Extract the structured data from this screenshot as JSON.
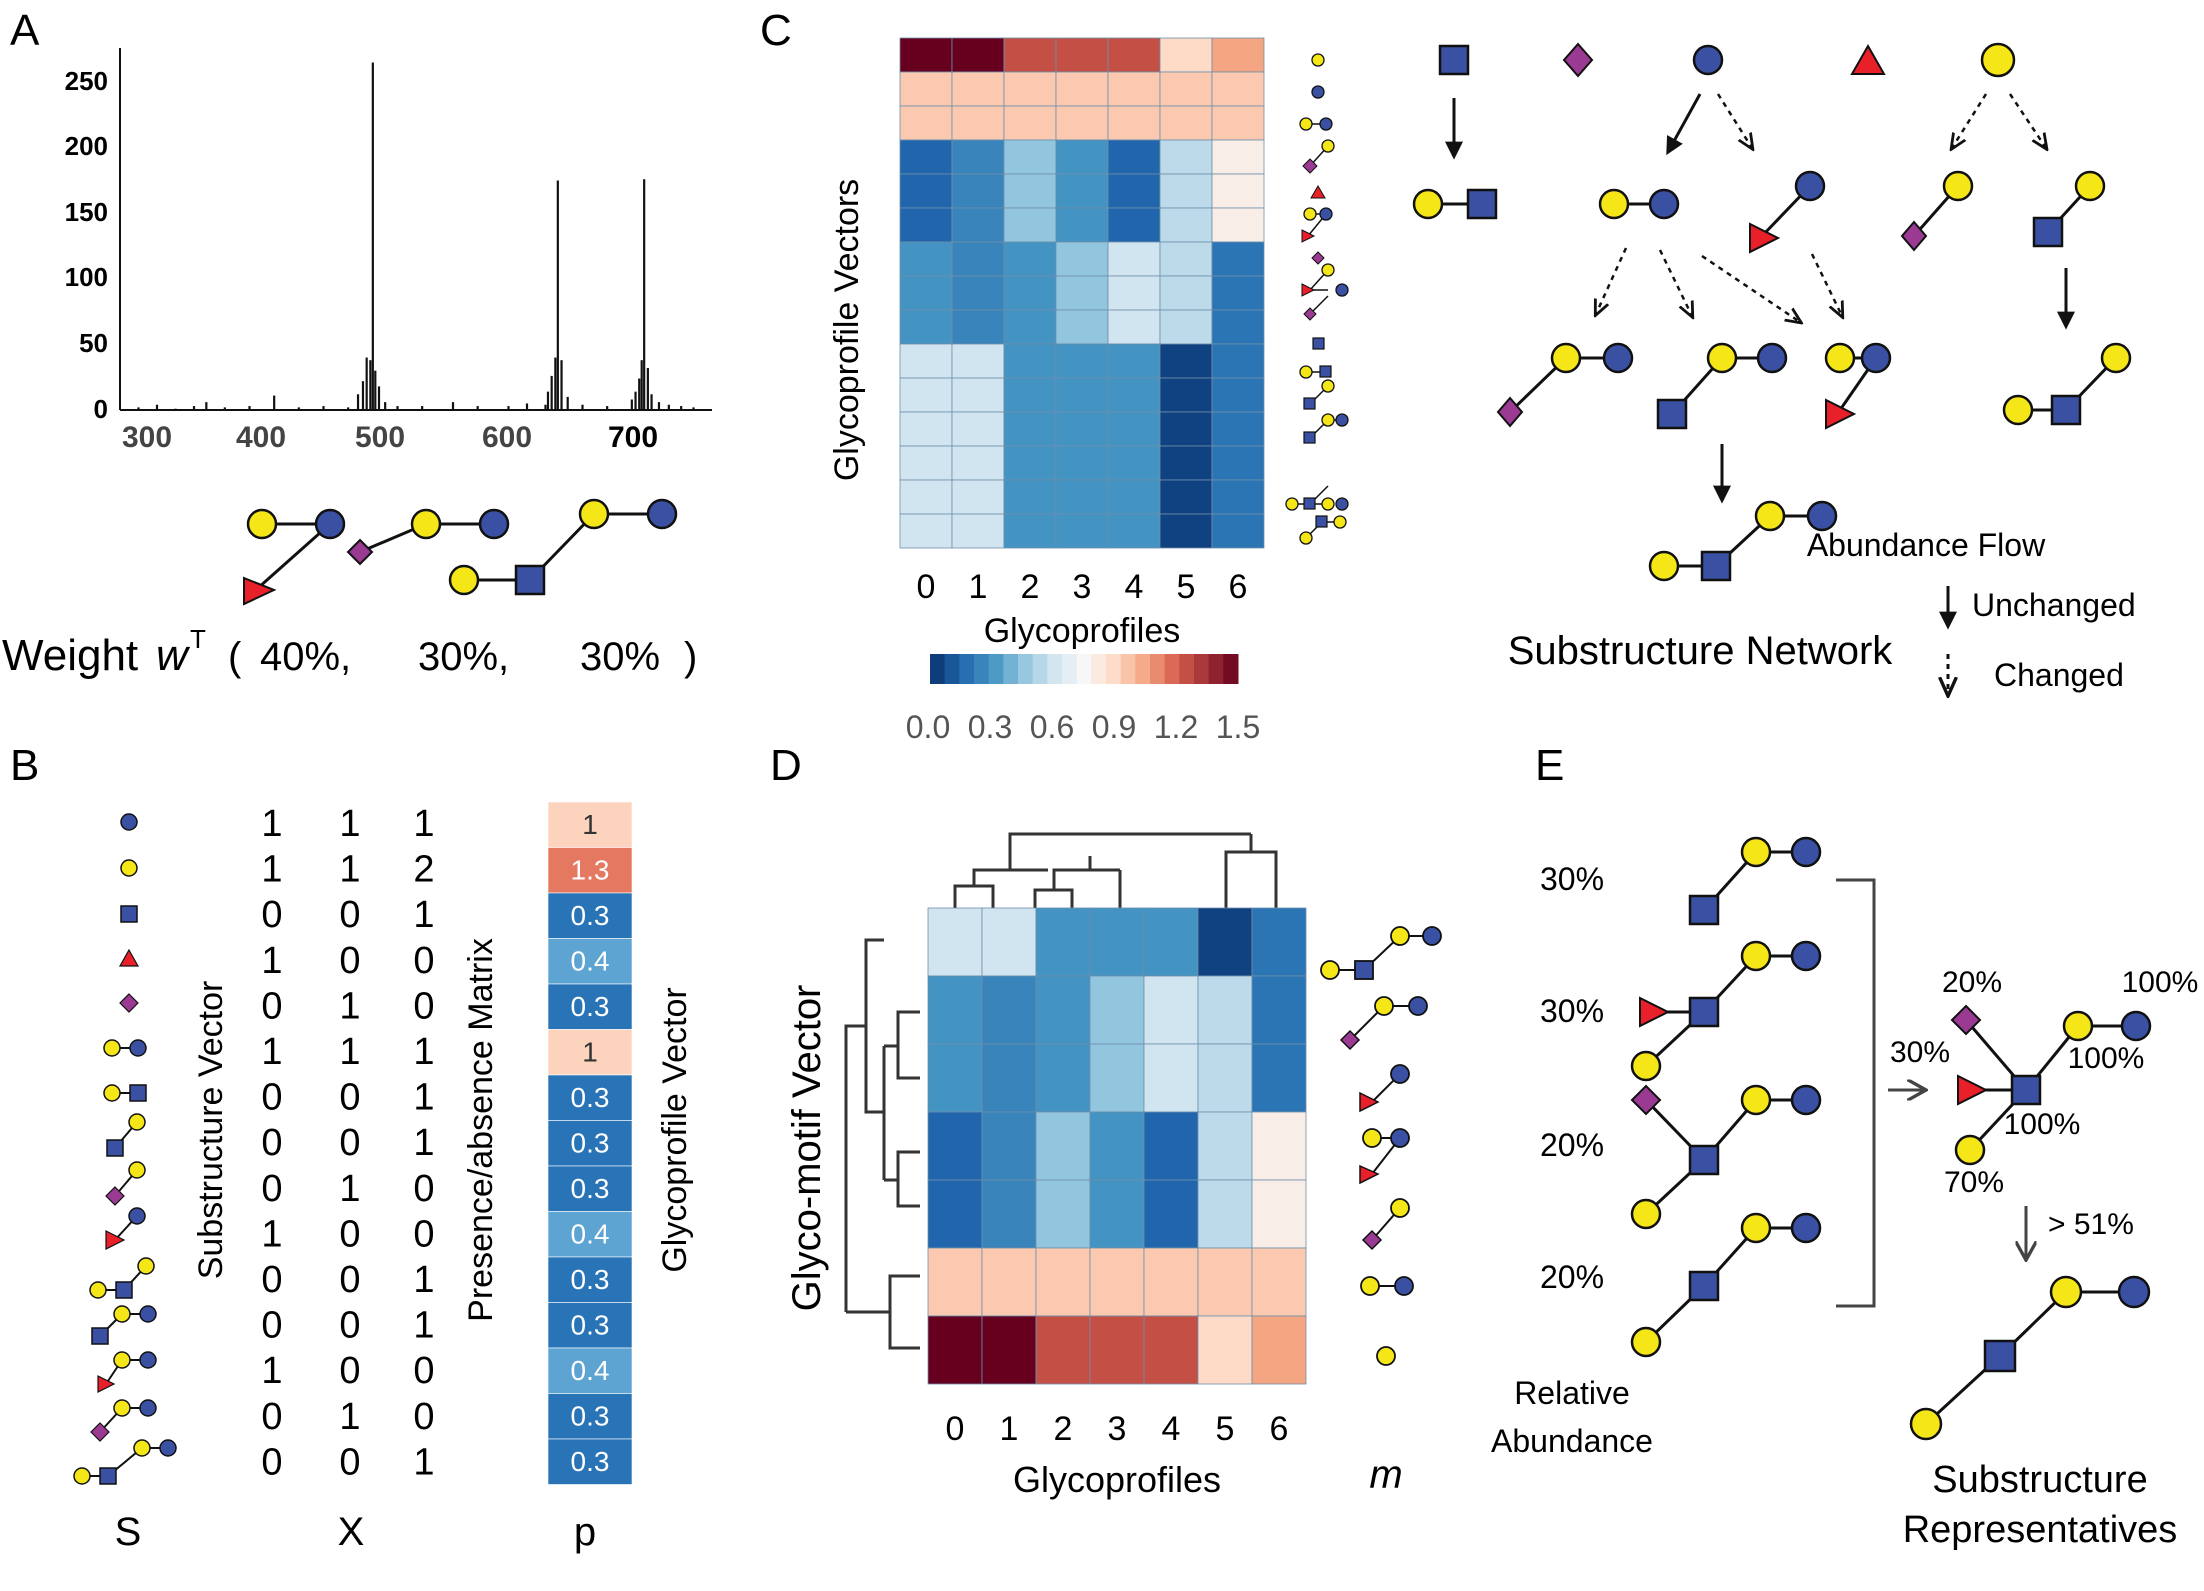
{
  "panel_labels": [
    "A",
    "B",
    "C",
    "D",
    "E"
  ],
  "colors": {
    "glc_blue": "#3a51a3",
    "gal_yellow": "#f5e617",
    "fuc_red": "#e8202a",
    "sia_purple": "#9b3a93",
    "cell_border": "#6e8fab"
  },
  "icon_legend": {
    "blue-circle": "blue circle",
    "yellow-circle": "yellow circle",
    "blue-square": "blue square",
    "red-triangle": "red triangle",
    "purple-diamond": "purple diamond"
  },
  "panel_a": {
    "y_ticks": [
      "250",
      "200",
      "150",
      "100",
      "50",
      "0"
    ],
    "x_ticks": [
      "300",
      "400",
      "500",
      "600",
      "700"
    ],
    "weight_label": "Weight ",
    "weight_symbol": "w",
    "weight_sup": "T",
    "weight_open": "(",
    "weights": [
      "40%,",
      "30%,",
      "30%"
    ],
    "weight_close": ")"
  },
  "chart_data": [
    {
      "type": "bar",
      "panel": "A",
      "xlim": [
        285,
        765
      ],
      "ylim": [
        0,
        270
      ],
      "x": [
        300,
        315,
        330,
        345,
        355,
        370,
        390,
        410,
        430,
        450,
        470,
        478,
        482,
        485,
        488,
        490,
        492,
        495,
        500,
        510,
        530,
        555,
        575,
        600,
        615,
        630,
        632,
        635,
        638,
        640,
        643,
        648,
        660,
        680,
        700,
        703,
        706,
        708,
        710,
        713,
        716,
        722,
        730,
        740,
        750
      ],
      "values": [
        2,
        4,
        1,
        3,
        6,
        2,
        3,
        11,
        2,
        3,
        2,
        12,
        22,
        40,
        38,
        265,
        30,
        18,
        6,
        3,
        3,
        6,
        3,
        3,
        5,
        4,
        14,
        26,
        40,
        175,
        38,
        10,
        4,
        3,
        8,
        14,
        24,
        38,
        176,
        32,
        12,
        6,
        4,
        3,
        2
      ]
    },
    {
      "type": "heatmap",
      "panel": "C",
      "x": [
        "0",
        "1",
        "2",
        "3",
        "4",
        "5",
        "6"
      ],
      "values": [
        [
          1.5,
          1.5,
          1.25,
          1.25,
          1.25,
          0.9,
          1.05
        ],
        [
          0.95,
          0.95,
          0.95,
          0.95,
          0.95,
          0.95,
          0.95
        ],
        [
          0.95,
          0.95,
          0.95,
          0.95,
          0.95,
          0.95,
          0.95
        ],
        [
          0.15,
          0.25,
          0.45,
          0.3,
          0.15,
          0.55,
          0.8
        ],
        [
          0.15,
          0.25,
          0.45,
          0.3,
          0.15,
          0.55,
          0.8
        ],
        [
          0.15,
          0.25,
          0.45,
          0.3,
          0.15,
          0.55,
          0.8
        ],
        [
          0.3,
          0.25,
          0.3,
          0.45,
          0.6,
          0.55,
          0.2
        ],
        [
          0.3,
          0.25,
          0.3,
          0.45,
          0.6,
          0.55,
          0.2
        ],
        [
          0.3,
          0.25,
          0.3,
          0.45,
          0.6,
          0.55,
          0.2
        ],
        [
          0.6,
          0.6,
          0.3,
          0.3,
          0.3,
          0.05,
          0.2
        ],
        [
          0.6,
          0.6,
          0.3,
          0.3,
          0.3,
          0.05,
          0.2
        ],
        [
          0.6,
          0.6,
          0.3,
          0.3,
          0.3,
          0.05,
          0.2
        ],
        [
          0.6,
          0.6,
          0.3,
          0.3,
          0.3,
          0.05,
          0.2
        ],
        [
          0.6,
          0.6,
          0.3,
          0.3,
          0.3,
          0.05,
          0.2
        ],
        [
          0.6,
          0.6,
          0.3,
          0.3,
          0.3,
          0.05,
          0.2
        ]
      ],
      "colorbar_ticks": [
        "0.0",
        "0.3",
        "0.6",
        "0.9",
        "1.2",
        "1.5"
      ],
      "range": [
        0,
        1.5
      ]
    },
    {
      "type": "heatmap",
      "panel": "D",
      "x": [
        "0",
        "1",
        "2",
        "3",
        "4",
        "5",
        "6"
      ],
      "values": [
        [
          0.6,
          0.6,
          0.3,
          0.3,
          0.3,
          0.05,
          0.2
        ],
        [
          0.3,
          0.25,
          0.3,
          0.45,
          0.6,
          0.55,
          0.2
        ],
        [
          0.3,
          0.25,
          0.3,
          0.45,
          0.6,
          0.55,
          0.2
        ],
        [
          0.15,
          0.25,
          0.45,
          0.3,
          0.15,
          0.55,
          0.8
        ],
        [
          0.15,
          0.25,
          0.45,
          0.3,
          0.15,
          0.55,
          0.8
        ],
        [
          0.95,
          0.95,
          0.95,
          0.95,
          0.95,
          0.95,
          0.95
        ],
        [
          1.5,
          1.5,
          1.25,
          1.25,
          1.25,
          0.9,
          1.05
        ]
      ]
    }
  ],
  "panel_b": {
    "matrix": [
      [
        1,
        1,
        1
      ],
      [
        1,
        1,
        2
      ],
      [
        0,
        0,
        1
      ],
      [
        1,
        0,
        0
      ],
      [
        0,
        1,
        0
      ],
      [
        1,
        1,
        1
      ],
      [
        0,
        0,
        1
      ],
      [
        0,
        0,
        1
      ],
      [
        0,
        1,
        0
      ],
      [
        1,
        0,
        0
      ],
      [
        0,
        0,
        1
      ],
      [
        0,
        0,
        1
      ],
      [
        1,
        0,
        0
      ],
      [
        0,
        1,
        0
      ],
      [
        0,
        0,
        1
      ]
    ],
    "p_values": [
      "1",
      "1.3",
      "0.3",
      "0.4",
      "0.3",
      "1",
      "0.3",
      "0.3",
      "0.3",
      "0.4",
      "0.3",
      "0.3",
      "0.4",
      "0.3",
      "0.3"
    ],
    "substructure_label": "Substructure Vector",
    "matrix_label": "Presence/absence Matrix",
    "vector_label": "Glycoprofile Vector",
    "S": "S",
    "X": "X",
    "p": "p"
  },
  "panel_c": {
    "y_label": "Glycoprofile Vectors",
    "x_label": "Glycoprofiles",
    "x_ticks": [
      "0",
      "1",
      "2",
      "3",
      "4",
      "5",
      "6"
    ],
    "network_title": "Substructure Network",
    "flow_title": "Abundance Flow",
    "unchanged": "Unchanged",
    "changed": "Changed"
  },
  "panel_d": {
    "y_label": "Glyco-motif Vector",
    "x_label": "Glycoprofiles",
    "x_ticks": [
      "0",
      "1",
      "2",
      "3",
      "4",
      "5",
      "6"
    ],
    "m": "m"
  },
  "panel_e": {
    "percents": [
      "30%",
      "30%",
      "20%",
      "20%"
    ],
    "rel1": "Relative",
    "rel2": "Abundance",
    "rep_labels": [
      "20%",
      "100%",
      "30%",
      "100%",
      "100%",
      "70%"
    ],
    "threshold": "> 51%",
    "sub1": "Substructure",
    "sub2": "Representatives"
  }
}
